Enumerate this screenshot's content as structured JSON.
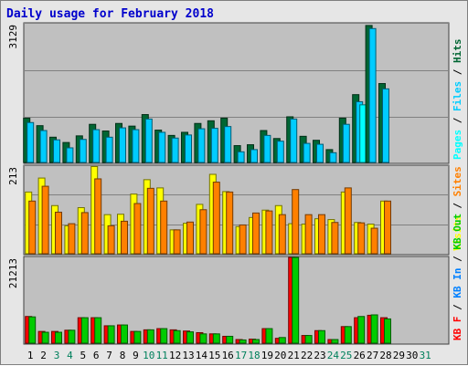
{
  "title": "Daily usage for February 2018",
  "chart_data": [
    {
      "type": "bar",
      "panel": "hits-files-pages",
      "y_max_label": "3129",
      "ylim": [
        0,
        3129
      ],
      "categories": [
        "1",
        "2",
        "3",
        "4",
        "5",
        "6",
        "7",
        "8",
        "9",
        "10",
        "11",
        "12",
        "13",
        "14",
        "15",
        "16",
        "17",
        "18",
        "19",
        "20",
        "21",
        "22",
        "23",
        "24",
        "25",
        "26",
        "27",
        "28",
        "29",
        "30",
        "31"
      ],
      "series": [
        {
          "name": "Hits",
          "color": "#006633",
          "values": [
            1000,
            830,
            570,
            450,
            600,
            860,
            710,
            880,
            820,
            1080,
            730,
            610,
            680,
            880,
            940,
            1000,
            380,
            400,
            720,
            540,
            1030,
            590,
            500,
            290,
            1000,
            1530,
            3090,
            1780,
            0,
            0,
            0
          ]
        },
        {
          "name": "Files",
          "color": "#00ccff",
          "values": [
            900,
            720,
            510,
            330,
            520,
            740,
            570,
            780,
            740,
            980,
            680,
            550,
            620,
            760,
            770,
            810,
            240,
            290,
            610,
            480,
            980,
            430,
            410,
            220,
            860,
            1370,
            3020,
            1660,
            0,
            0,
            0
          ]
        },
        {
          "name": "Pages",
          "color": "#00ffff",
          "values": [
            0,
            0,
            0,
            0,
            0,
            0,
            0,
            0,
            0,
            0,
            0,
            0,
            0,
            0,
            0,
            0,
            0,
            0,
            0,
            0,
            0,
            0,
            0,
            0,
            0,
            1300,
            0,
            0,
            0,
            0,
            0
          ]
        }
      ],
      "legend": [
        "Pages",
        "Files",
        "Hits"
      ],
      "grid": true
    },
    {
      "type": "bar",
      "panel": "visits-sites",
      "y_max_label": "213",
      "ylim": [
        0,
        213
      ],
      "categories": [
        "1",
        "2",
        "3",
        "4",
        "5",
        "6",
        "7",
        "8",
        "9",
        "10",
        "11",
        "12",
        "13",
        "14",
        "15",
        "16",
        "17",
        "18",
        "19",
        "20",
        "21",
        "22",
        "23",
        "24",
        "25",
        "26",
        "27",
        "28",
        "29",
        "30",
        "31"
      ],
      "series": [
        {
          "name": "Visits",
          "color": "#ffff00",
          "values": [
            150,
            184,
            117,
            68,
            112,
            212,
            95,
            96,
            145,
            180,
            160,
            58,
            74,
            120,
            193,
            151,
            66,
            88,
            106,
            117,
            73,
            72,
            85,
            83,
            150,
            76,
            72,
            128,
            0,
            0,
            0
          ]
        },
        {
          "name": "Sites",
          "color": "#ff8000",
          "values": [
            128,
            164,
            101,
            73,
            100,
            182,
            68,
            79,
            122,
            159,
            128,
            58,
            77,
            107,
            174,
            150,
            70,
            99,
            104,
            95,
            156,
            95,
            95,
            76,
            160,
            75,
            62,
            128,
            0,
            0,
            0
          ]
        }
      ],
      "legend": [
        "Visits",
        "Sites"
      ],
      "grid": true
    },
    {
      "type": "bar",
      "panel": "kbytes",
      "y_max_label": "21213",
      "ylim": [
        0,
        21213
      ],
      "categories": [
        "1",
        "2",
        "3",
        "4",
        "5",
        "6",
        "7",
        "8",
        "9",
        "10",
        "11",
        "12",
        "13",
        "14",
        "15",
        "16",
        "17",
        "18",
        "19",
        "20",
        "21",
        "22",
        "23",
        "24",
        "25",
        "26",
        "27",
        "28",
        "29",
        "30",
        "31"
      ],
      "series": [
        {
          "name": "KB F",
          "color": "#ff0000",
          "values": [
            6600,
            2900,
            2900,
            3200,
            6300,
            6300,
            4300,
            4500,
            2900,
            3300,
            3600,
            3300,
            3000,
            2600,
            2300,
            1700,
            900,
            1000,
            3600,
            1200,
            21200,
            1900,
            3100,
            900,
            4100,
            6300,
            6900,
            6300,
            0,
            0,
            0
          ]
        },
        {
          "name": "KB In",
          "color": "#0080ff",
          "values": [
            0,
            0,
            0,
            0,
            0,
            0,
            0,
            0,
            0,
            0,
            0,
            0,
            0,
            0,
            0,
            0,
            0,
            0,
            0,
            0,
            0,
            0,
            0,
            0,
            0,
            0,
            0,
            0,
            0,
            0,
            0
          ]
        },
        {
          "name": "KB Out",
          "color": "#00cc00",
          "values": [
            6500,
            2700,
            2700,
            3200,
            6300,
            6300,
            4300,
            4500,
            2900,
            3300,
            3600,
            3100,
            2800,
            2300,
            2300,
            1700,
            800,
            900,
            3600,
            1400,
            21200,
            1900,
            3100,
            900,
            4100,
            6600,
            7000,
            6000,
            0,
            0,
            0
          ]
        }
      ],
      "legend": [
        "KB F",
        "KB In",
        "KB Out"
      ],
      "grid": false
    }
  ],
  "x_labels": [
    {
      "label": "1",
      "color": "#000000"
    },
    {
      "label": "2",
      "color": "#000000"
    },
    {
      "label": "3",
      "color": "#00805c"
    },
    {
      "label": "4",
      "color": "#00805c"
    },
    {
      "label": "5",
      "color": "#000000"
    },
    {
      "label": "6",
      "color": "#000000"
    },
    {
      "label": "7",
      "color": "#000000"
    },
    {
      "label": "8",
      "color": "#000000"
    },
    {
      "label": "9",
      "color": "#000000"
    },
    {
      "label": "10",
      "color": "#00805c"
    },
    {
      "label": "11",
      "color": "#00805c"
    },
    {
      "label": "12",
      "color": "#000000"
    },
    {
      "label": "13",
      "color": "#000000"
    },
    {
      "label": "14",
      "color": "#000000"
    },
    {
      "label": "15",
      "color": "#000000"
    },
    {
      "label": "16",
      "color": "#000000"
    },
    {
      "label": "17",
      "color": "#00805c"
    },
    {
      "label": "18",
      "color": "#00805c"
    },
    {
      "label": "19",
      "color": "#000000"
    },
    {
      "label": "20",
      "color": "#000000"
    },
    {
      "label": "21",
      "color": "#000000"
    },
    {
      "label": "22",
      "color": "#000000"
    },
    {
      "label": "23",
      "color": "#000000"
    },
    {
      "label": "24",
      "color": "#00805c"
    },
    {
      "label": "25",
      "color": "#00805c"
    },
    {
      "label": "26",
      "color": "#000000"
    },
    {
      "label": "27",
      "color": "#000000"
    },
    {
      "label": "28",
      "color": "#000000"
    },
    {
      "label": "29",
      "color": "#000000"
    },
    {
      "label": "30",
      "color": "#000000"
    },
    {
      "label": "31",
      "color": "#00805c"
    }
  ],
  "legend_separator": " / "
}
